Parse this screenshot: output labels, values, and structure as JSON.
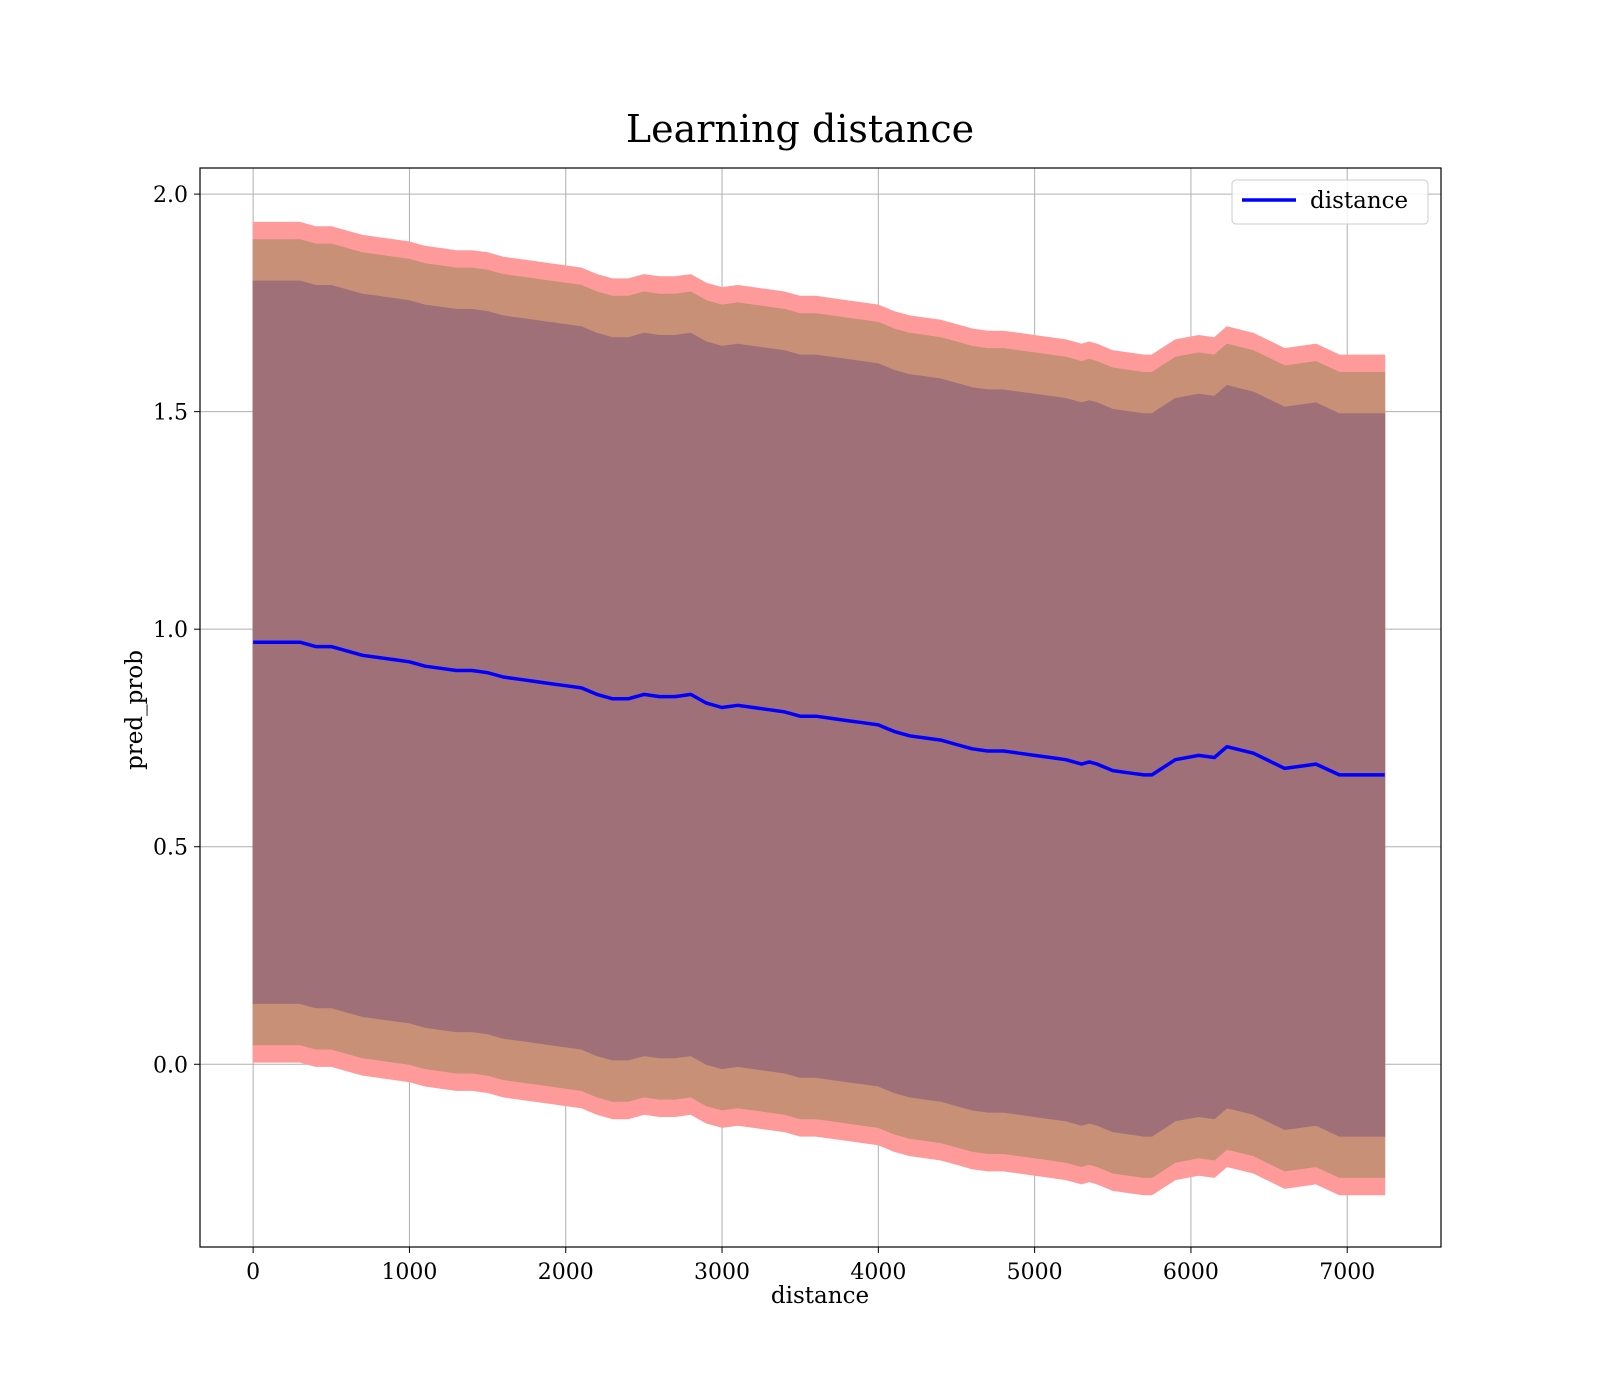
{
  "chart_data": {
    "type": "line",
    "title": "Learning distance",
    "xlabel": "distance",
    "ylabel": "pred_prob",
    "xlim": [
      -340,
      7600
    ],
    "ylim": [
      -0.42,
      2.06
    ],
    "xticks": [
      0,
      1000,
      2000,
      3000,
      4000,
      5000,
      6000,
      7000
    ],
    "yticks": [
      0.0,
      0.5,
      1.0,
      1.5,
      2.0
    ],
    "xtick_labels": [
      "0",
      "1000",
      "2000",
      "3000",
      "4000",
      "5000",
      "6000",
      "7000"
    ],
    "ytick_labels": [
      "0.0",
      "0.5",
      "1.0",
      "1.5",
      "2.0"
    ],
    "grid": true,
    "legend": {
      "position": "top-right",
      "entries": [
        "distance"
      ]
    },
    "colors": {
      "line": "#0000ff",
      "band_outer": "#ff9a9a",
      "band_middle": "#c79077",
      "band_inner": "#a07078",
      "axes": "#000000"
    },
    "series": [
      {
        "name": "distance",
        "x": [
          0,
          100,
          200,
          300,
          400,
          500,
          600,
          700,
          800,
          900,
          1000,
          1100,
          1200,
          1300,
          1400,
          1500,
          1600,
          1700,
          1800,
          1900,
          2000,
          2100,
          2200,
          2300,
          2400,
          2500,
          2600,
          2700,
          2800,
          2900,
          3000,
          3100,
          3200,
          3300,
          3400,
          3500,
          3600,
          3700,
          3800,
          3900,
          4000,
          4100,
          4200,
          4300,
          4400,
          4500,
          4600,
          4700,
          4800,
          4900,
          5000,
          5100,
          5200,
          5300,
          5350,
          5400,
          5500,
          5600,
          5700,
          5750,
          5900,
          6050,
          6150,
          6230,
          6400,
          6600,
          6800,
          6950,
          7240
        ],
        "y": [
          0.97,
          0.97,
          0.97,
          0.97,
          0.96,
          0.96,
          0.95,
          0.94,
          0.935,
          0.93,
          0.925,
          0.915,
          0.91,
          0.905,
          0.905,
          0.9,
          0.89,
          0.885,
          0.88,
          0.875,
          0.87,
          0.865,
          0.85,
          0.84,
          0.84,
          0.85,
          0.845,
          0.845,
          0.85,
          0.83,
          0.82,
          0.825,
          0.82,
          0.815,
          0.81,
          0.8,
          0.8,
          0.795,
          0.79,
          0.785,
          0.78,
          0.765,
          0.755,
          0.75,
          0.745,
          0.735,
          0.725,
          0.72,
          0.72,
          0.715,
          0.71,
          0.705,
          0.7,
          0.69,
          0.695,
          0.69,
          0.675,
          0.67,
          0.665,
          0.665,
          0.7,
          0.71,
          0.705,
          0.73,
          0.715,
          0.68,
          0.69,
          0.665,
          0.665
        ],
        "band_inner_halfwidth": 0.83,
        "band_middle_halfwidth": 0.925,
        "band_outer_halfwidth": 0.965
      }
    ]
  }
}
